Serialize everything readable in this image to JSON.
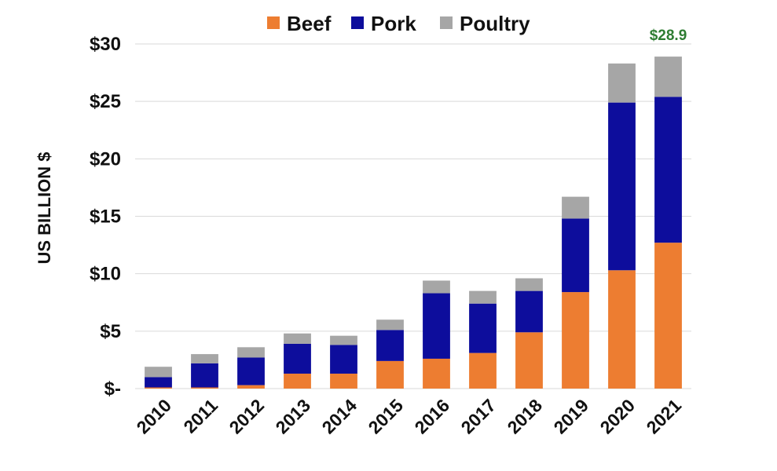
{
  "chart_data": {
    "type": "bar",
    "stacked": true,
    "categories": [
      "2010",
      "2011",
      "2012",
      "2013",
      "2014",
      "2015",
      "2016",
      "2017",
      "2018",
      "2019",
      "2020",
      "2021"
    ],
    "series": [
      {
        "name": "Beef",
        "color": "#ed7d31",
        "values": [
          0.1,
          0.1,
          0.3,
          1.3,
          1.3,
          2.4,
          2.6,
          3.1,
          4.9,
          8.4,
          10.3,
          12.7
        ]
      },
      {
        "name": "Pork",
        "color": "#0d0d9c",
        "values": [
          0.9,
          2.1,
          2.4,
          2.6,
          2.5,
          2.7,
          5.7,
          4.3,
          3.6,
          6.4,
          14.6,
          12.7
        ]
      },
      {
        "name": "Poultry",
        "color": "#a6a6a6",
        "values": [
          0.9,
          0.8,
          0.9,
          0.9,
          0.8,
          0.9,
          1.1,
          1.1,
          1.1,
          1.9,
          3.4,
          3.5
        ]
      }
    ],
    "ylabel": "US BILLION $",
    "ylim": [
      0,
      30
    ],
    "yticks": [
      0,
      5,
      10,
      15,
      20,
      25,
      30
    ],
    "ytick_labels": [
      "$-",
      "$5",
      "$10",
      "$15",
      "$20",
      "$25",
      "$30"
    ],
    "grid": true,
    "legend_position": "top",
    "annotations": [
      {
        "category": "2021",
        "text": "$28.9"
      }
    ]
  }
}
